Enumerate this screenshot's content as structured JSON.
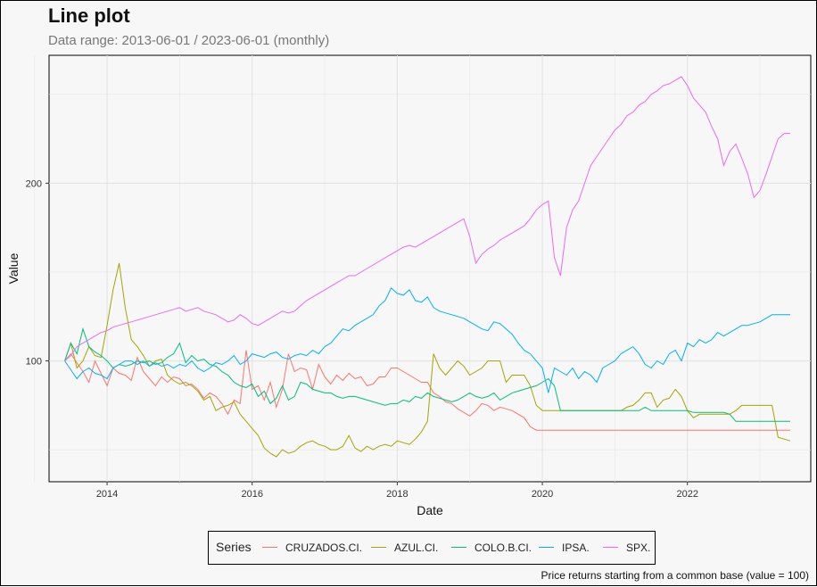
{
  "title": "Line plot",
  "subtitle": "Data range: 2013-06-01 / 2023-06-01 (monthly)",
  "caption": "Price returns starting from a common base (value = 100)",
  "legend": {
    "title": "Series"
  },
  "chart_data": {
    "type": "line",
    "xlabel": "Date",
    "ylabel": "Value",
    "xlim": [
      2013.2,
      2023.7
    ],
    "ylim": [
      32,
      272
    ],
    "x_ticks": [
      2014,
      2016,
      2018,
      2020,
      2022
    ],
    "x_tick_labels": [
      "2014",
      "2016",
      "2018",
      "2020",
      "2022"
    ],
    "y_ticks": [
      100,
      200
    ],
    "y_tick_labels": [
      "100",
      "200"
    ],
    "grid": true,
    "legend_position": "bottom",
    "x": [
      "2013-06",
      "2013-07",
      "2013-08",
      "2013-09",
      "2013-10",
      "2013-11",
      "2013-12",
      "2014-01",
      "2014-02",
      "2014-03",
      "2014-04",
      "2014-05",
      "2014-06",
      "2014-07",
      "2014-08",
      "2014-09",
      "2014-10",
      "2014-11",
      "2014-12",
      "2015-01",
      "2015-02",
      "2015-03",
      "2015-04",
      "2015-05",
      "2015-06",
      "2015-07",
      "2015-08",
      "2015-09",
      "2015-10",
      "2015-11",
      "2015-12",
      "2016-01",
      "2016-02",
      "2016-03",
      "2016-04",
      "2016-05",
      "2016-06",
      "2016-07",
      "2016-08",
      "2016-09",
      "2016-10",
      "2016-11",
      "2016-12",
      "2017-01",
      "2017-02",
      "2017-03",
      "2017-04",
      "2017-05",
      "2017-06",
      "2017-07",
      "2017-08",
      "2017-09",
      "2017-10",
      "2017-11",
      "2017-12",
      "2018-01",
      "2018-02",
      "2018-03",
      "2018-04",
      "2018-05",
      "2018-06",
      "2018-07",
      "2018-08",
      "2018-09",
      "2018-10",
      "2018-11",
      "2018-12",
      "2019-01",
      "2019-02",
      "2019-03",
      "2019-04",
      "2019-05",
      "2019-06",
      "2019-07",
      "2019-08",
      "2019-09",
      "2019-10",
      "2019-11",
      "2019-12",
      "2020-01",
      "2020-02",
      "2020-03",
      "2020-04",
      "2020-05",
      "2020-06",
      "2020-07",
      "2020-08",
      "2020-09",
      "2020-10",
      "2020-11",
      "2020-12",
      "2021-01",
      "2021-02",
      "2021-03",
      "2021-04",
      "2021-05",
      "2021-06",
      "2021-07",
      "2021-08",
      "2021-09",
      "2021-10",
      "2021-11",
      "2021-12",
      "2022-01",
      "2022-02",
      "2022-03",
      "2022-04",
      "2022-05",
      "2022-06",
      "2022-07",
      "2022-08",
      "2022-09",
      "2022-10",
      "2022-11",
      "2022-12",
      "2023-01",
      "2023-02",
      "2023-03",
      "2023-04",
      "2023-05",
      "2023-06"
    ],
    "series": [
      {
        "name": "CRUZADOS.CI.",
        "color": "#F8766D",
        "values": [
          100,
          104,
          99,
          94,
          88,
          100,
          93,
          86,
          96,
          93,
          92,
          89,
          102,
          94,
          90,
          86,
          91,
          88,
          91,
          90,
          86,
          87,
          84,
          79,
          82,
          80,
          76,
          70,
          78,
          76,
          106,
          84,
          86,
          78,
          88,
          74,
          84,
          104,
          94,
          96,
          95,
          84,
          98,
          91,
          87,
          92,
          89,
          93,
          90,
          91,
          86,
          87,
          91,
          91,
          96,
          96,
          94,
          92,
          90,
          88,
          88,
          82,
          80,
          77,
          76,
          73,
          71,
          69,
          72,
          76,
          75,
          72,
          74,
          73,
          72,
          70,
          68,
          63,
          61,
          61,
          61,
          61,
          61,
          61,
          61,
          61,
          61,
          61,
          61,
          61,
          61,
          61,
          61,
          61,
          61,
          61,
          61,
          61,
          61,
          61,
          61,
          61,
          61,
          61,
          61,
          61,
          61,
          61,
          61,
          61,
          61,
          61,
          61,
          61,
          61,
          61,
          61,
          61,
          61,
          61,
          61
        ]
      },
      {
        "name": "AZUL.CI.",
        "color": "#A3A500",
        "values": [
          100,
          110,
          96,
          100,
          108,
          103,
          102,
          120,
          140,
          155,
          130,
          112,
          108,
          103,
          97,
          100,
          101,
          92,
          89,
          87,
          88,
          86,
          83,
          78,
          80,
          72,
          74,
          75,
          77,
          70,
          66,
          62,
          58,
          51,
          48,
          46,
          50,
          48,
          49,
          52,
          54,
          55,
          53,
          52,
          50,
          50,
          52,
          58,
          51,
          49,
          52,
          50,
          52,
          53,
          52,
          55,
          54,
          53,
          56,
          60,
          66,
          104,
          96,
          92,
          96,
          100,
          97,
          92,
          94,
          96,
          100,
          100,
          100,
          88,
          92,
          92,
          92,
          86,
          75,
          72,
          72,
          72,
          72,
          72,
          72,
          72,
          72,
          72,
          72,
          72,
          72,
          72,
          72,
          74,
          75,
          78,
          82,
          82,
          74,
          78,
          79,
          84,
          80,
          72,
          68,
          70,
          70,
          70,
          70,
          70,
          70,
          72,
          75,
          75,
          75,
          75,
          75,
          75,
          57,
          56,
          55
        ]
      },
      {
        "name": "COLO.B.CI.",
        "color": "#00BF7D",
        "values": [
          100,
          110,
          104,
          118,
          108,
          105,
          103,
          100,
          96,
          98,
          97,
          98,
          100,
          99,
          100,
          98,
          99,
          102,
          104,
          110,
          99,
          103,
          100,
          101,
          98,
          97,
          94,
          92,
          88,
          86,
          85,
          87,
          80,
          83,
          76,
          79,
          86,
          78,
          80,
          88,
          87,
          84,
          83,
          82,
          82,
          80,
          79,
          80,
          80,
          79,
          78,
          77,
          76,
          75,
          76,
          76,
          78,
          77,
          80,
          79,
          82,
          80,
          79,
          78,
          77,
          78,
          80,
          82,
          80,
          79,
          80,
          82,
          78,
          80,
          82,
          83,
          84,
          85,
          86,
          88,
          90,
          86,
          72,
          72,
          72,
          72,
          72,
          72,
          72,
          72,
          72,
          72,
          72,
          72,
          72,
          72,
          74,
          72,
          72,
          72,
          72,
          72,
          72,
          72,
          71,
          71,
          71,
          71,
          71,
          71,
          70,
          66,
          66,
          66,
          66,
          66,
          66,
          66,
          66,
          66,
          66
        ]
      },
      {
        "name": "IPSA.",
        "color": "#00B0F6",
        "values": [
          100,
          95,
          90,
          94,
          96,
          93,
          92,
          90,
          96,
          98,
          100,
          100,
          98,
          100,
          97,
          99,
          97,
          98,
          96,
          98,
          97,
          100,
          96,
          94,
          96,
          99,
          98,
          100,
          103,
          98,
          100,
          104,
          103,
          102,
          104,
          105,
          102,
          101,
          103,
          104,
          103,
          106,
          104,
          108,
          110,
          114,
          118,
          117,
          120,
          122,
          124,
          126,
          131,
          134,
          141,
          138,
          137,
          140,
          134,
          133,
          136,
          130,
          128,
          127,
          126,
          125,
          124,
          122,
          120,
          118,
          117,
          122,
          121,
          118,
          115,
          110,
          106,
          104,
          100,
          96,
          82,
          96,
          94,
          92,
          96,
          90,
          94,
          92,
          88,
          96,
          98,
          100,
          104,
          106,
          108,
          104,
          98,
          96,
          100,
          98,
          104,
          106,
          100,
          110,
          108,
          112,
          110,
          112,
          116,
          114,
          116,
          118,
          120,
          120,
          121,
          122,
          124,
          126,
          126,
          126,
          126
        ]
      },
      {
        "name": "SPX.",
        "color": "#E76BF3",
        "values": [
          100,
          103,
          108,
          110,
          112,
          114,
          116,
          117,
          119,
          120,
          121,
          122,
          123,
          124,
          125,
          126,
          127,
          128,
          129,
          130,
          128,
          129,
          130,
          128,
          127,
          126,
          124,
          122,
          123,
          126,
          124,
          121,
          120,
          122,
          124,
          126,
          128,
          127,
          128,
          131,
          134,
          136,
          138,
          140,
          142,
          144,
          146,
          148,
          148,
          150,
          152,
          154,
          156,
          158,
          160,
          162,
          164,
          165,
          164,
          166,
          168,
          170,
          172,
          174,
          176,
          178,
          180,
          170,
          155,
          160,
          163,
          165,
          168,
          170,
          172,
          174,
          176,
          180,
          185,
          188,
          190,
          158,
          148,
          175,
          185,
          190,
          200,
          210,
          215,
          220,
          225,
          230,
          233,
          238,
          240,
          244,
          246,
          250,
          252,
          255,
          256,
          258,
          260,
          255,
          248,
          244,
          240,
          232,
          225,
          210,
          218,
          222,
          214,
          205,
          192,
          196,
          205,
          215,
          225,
          228,
          228
        ]
      }
    ]
  }
}
